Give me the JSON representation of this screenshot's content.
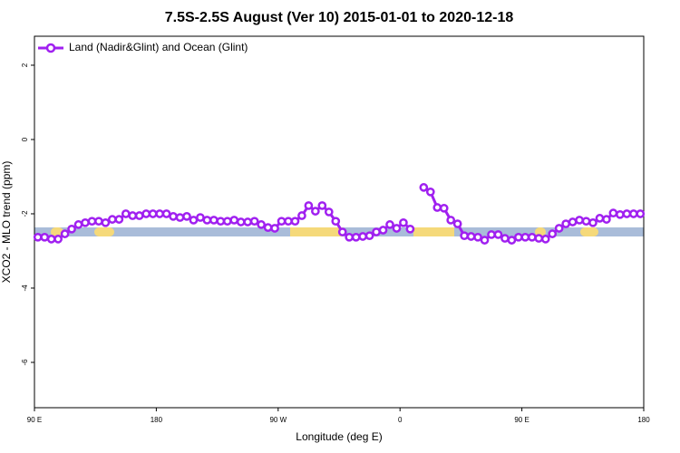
{
  "chart_data": {
    "type": "line",
    "title": "7.5S-2.5S August (Ver 10)   2015-01-01 to 2020-12-18",
    "x_label": "Longitude (deg E)",
    "y_label": "XCO2 - MLO trend (ppm)",
    "xlim": [
      90,
      540
    ],
    "ylim": [
      -7.22,
      2.78
    ],
    "xticks": [
      {
        "value": 90,
        "label": "90 E"
      },
      180,
      {
        "value": 270,
        "label": "90 W"
      },
      {
        "value": 360,
        "label": "0"
      },
      {
        "value": 450,
        "label": "90 E"
      },
      {
        "value": 540,
        "label": "180"
      }
    ],
    "yticks": [
      2,
      0,
      -2,
      -4,
      -6
    ],
    "legend": "top-left",
    "grid": false,
    "series": [
      {
        "name": "Land (Nadir&Glint) and Ocean (Glint)",
        "color": "#a020f0",
        "x": [
          92.5,
          97.5,
          102.5,
          107.5,
          112.5,
          117.5,
          122.5,
          127.5,
          132.5,
          137.5,
          142.5,
          147.5,
          152.5,
          157.5,
          162.5,
          167.5,
          172.5,
          177.5,
          182.5,
          187.5,
          192.5,
          197.5,
          202.5,
          207.5,
          212.5,
          217.5,
          222.5,
          227.5,
          232.5,
          237.5,
          242.5,
          247.5,
          252.5,
          257.5,
          262.5,
          267.5,
          272.5,
          277.5,
          282.5,
          287.5,
          292.5,
          297.5,
          302.5,
          307.5,
          312.5,
          317.5,
          322.5,
          327.5,
          332.5,
          337.5,
          342.5,
          347.5,
          352.5,
          357.5,
          362.5,
          367.5,
          372.5,
          377.5,
          382.5,
          387.5,
          392.5,
          397.5,
          402.5,
          407.5,
          412.5,
          417.5,
          422.5,
          427.5,
          432.5,
          437.5,
          442.5,
          447.5,
          452.5,
          457.5,
          462.5,
          467.5,
          472.5,
          477.5,
          482.5,
          487.5,
          492.5,
          497.5,
          502.5,
          507.5,
          512.5,
          517.5,
          522.5,
          527.5,
          532.5,
          537.5
        ],
        "values": [
          -2.63,
          -2.63,
          -2.68,
          -2.68,
          -2.54,
          -2.41,
          -2.29,
          -2.24,
          -2.2,
          -2.2,
          -2.24,
          -2.15,
          -2.15,
          -2.0,
          -2.05,
          -2.05,
          -2.0,
          -2.0,
          -2.0,
          -2.0,
          -2.07,
          -2.1,
          -2.07,
          -2.17,
          -2.1,
          -2.17,
          -2.17,
          -2.2,
          -2.2,
          -2.17,
          -2.22,
          -2.22,
          -2.2,
          -2.29,
          -2.37,
          -2.39,
          -2.2,
          -2.2,
          -2.2,
          -2.05,
          -1.78,
          -1.93,
          -1.78,
          -1.95,
          -2.2,
          -2.49,
          -2.63,
          -2.63,
          -2.61,
          -2.59,
          -2.49,
          -2.44,
          -2.29,
          -2.39,
          -2.24,
          -2.41,
          null,
          -1.29,
          -1.41,
          -1.83,
          -1.85,
          -2.17,
          -2.27,
          -2.59,
          -2.61,
          -2.63,
          -2.71,
          -2.56,
          -2.56,
          -2.66,
          -2.71,
          -2.63,
          -2.63,
          -2.63,
          -2.66,
          -2.68,
          -2.54,
          -2.39,
          -2.27,
          -2.22,
          -2.17,
          -2.2,
          -2.24,
          -2.12,
          -2.15,
          -1.98,
          -2.02,
          -2.0,
          -2.0,
          -2.0
        ]
      }
    ]
  }
}
